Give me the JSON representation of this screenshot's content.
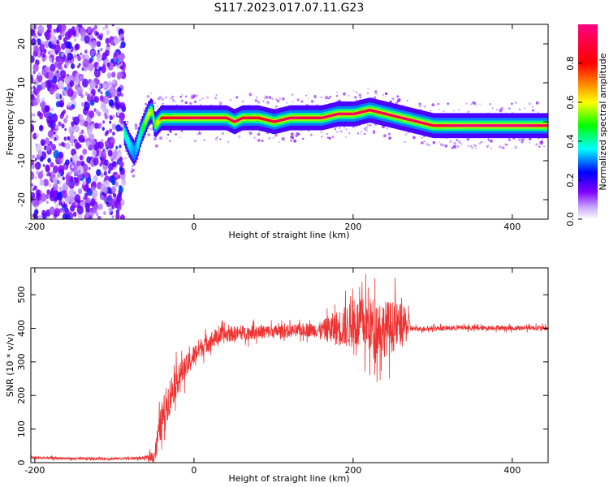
{
  "figure": {
    "title": "S117.2023.017.07.11.G23"
  },
  "chart_data": [
    {
      "type": "heatmap",
      "title": "S117.2023.017.07.11.G23",
      "xlabel": "Height of straight line (km)",
      "ylabel": "Frequency (Hz)",
      "xlim": [
        -205,
        445
      ],
      "ylim": [
        -25,
        25
      ],
      "xticks": [
        -200,
        0,
        200,
        400
      ],
      "yticks": [
        -20,
        -10,
        0,
        10,
        20
      ],
      "grid": false,
      "colorbar": {
        "label": "Normalized spectral amplitude",
        "range": [
          0.0,
          1.0
        ],
        "ticks": [
          0.0,
          0.2,
          0.4,
          0.6,
          0.8
        ],
        "colormap": [
          "#ffffff",
          "#7f00ff",
          "#0000ff",
          "#00ffff",
          "#00ff00",
          "#ffff00",
          "#ff0000",
          "#ff0080"
        ]
      },
      "noise_region": {
        "x_from": -205,
        "x_to": -88,
        "freq_from": -25,
        "freq_to": 25,
        "amplitude": 0.25
      },
      "ridge": {
        "x": [
          -88,
          -82,
          -76,
          -72,
          -68,
          -62,
          -58,
          -54,
          -50,
          -46,
          -42,
          -36,
          -20,
          0,
          20,
          40,
          50,
          60,
          80,
          100,
          120,
          140,
          160,
          180,
          200,
          220,
          240,
          260,
          280,
          300,
          320,
          340,
          360,
          380,
          400,
          420,
          445
        ],
        "freq": [
          -3,
          -6,
          -8,
          -6,
          -3,
          0,
          2,
          3,
          -1,
          0,
          1,
          1,
          1,
          1,
          1,
          1,
          0,
          1,
          1,
          0,
          1,
          1,
          1,
          2,
          2,
          3,
          2,
          1,
          0,
          -1,
          -1,
          -1,
          -1,
          -1,
          -1,
          -1,
          -1
        ],
        "amplitude": [
          0.4,
          0.35,
          0.3,
          0.35,
          0.4,
          0.55,
          0.6,
          0.55,
          0.5,
          0.6,
          0.8,
          0.85,
          0.9,
          0.95,
          0.9,
          0.9,
          0.95,
          0.9,
          0.85,
          0.9,
          0.95,
          0.9,
          0.95,
          0.95,
          0.95,
          0.9,
          0.95,
          0.95,
          0.95,
          0.9,
          0.95,
          1.0,
          1.0,
          1.0,
          1.0,
          1.0,
          0.9
        ]
      }
    },
    {
      "type": "line",
      "xlabel": "Height of straight line (km)",
      "ylabel": "SNR (10 * v/v)",
      "xlim": [
        -205,
        445
      ],
      "ylim": [
        0,
        580
      ],
      "xticks": [
        -200,
        0,
        200,
        400
      ],
      "yticks": [
        0,
        100,
        200,
        300,
        400,
        500
      ],
      "grid": false,
      "series": [
        {
          "color": "#ee3333",
          "x": [
            -205,
            -150,
            -100,
            -60,
            -50,
            -45,
            -40,
            -35,
            -30,
            -25,
            -20,
            -15,
            -10,
            -5,
            0,
            5,
            10,
            15,
            20,
            25,
            30,
            40,
            50,
            60,
            80,
            100,
            120,
            140,
            160,
            170,
            180,
            190,
            200,
            210,
            220,
            230,
            240,
            250,
            260,
            270,
            272,
            280,
            300,
            320,
            340,
            360,
            380,
            400,
            420,
            445
          ],
          "y": [
            15,
            12,
            12,
            14,
            20,
            80,
            130,
            170,
            200,
            230,
            250,
            270,
            285,
            300,
            320,
            335,
            345,
            355,
            360,
            370,
            375,
            380,
            385,
            385,
            390,
            390,
            392,
            395,
            395,
            398,
            400,
            405,
            410,
            415,
            410,
            405,
            400,
            405,
            410,
            405,
            400,
            398,
            400,
            400,
            402,
            400,
            402,
            400,
            402,
            400
          ],
          "spread": [
            6,
            5,
            5,
            6,
            30,
            60,
            80,
            80,
            80,
            70,
            60,
            55,
            50,
            45,
            45,
            45,
            40,
            40,
            40,
            38,
            36,
            34,
            32,
            30,
            30,
            28,
            26,
            28,
            34,
            60,
            75,
            90,
            100,
            110,
            120,
            125,
            120,
            110,
            90,
            60,
            14,
            10,
            10,
            10,
            10,
            10,
            10,
            10,
            10,
            10
          ]
        }
      ]
    }
  ]
}
